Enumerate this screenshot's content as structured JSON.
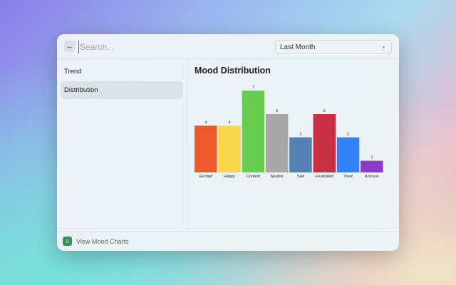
{
  "header": {
    "search_placeholder": "Search...",
    "period": "Last Month"
  },
  "sidebar": {
    "items": [
      {
        "label": "Trend"
      },
      {
        "label": "Distribution"
      }
    ]
  },
  "main": {
    "title": "Mood Distribution"
  },
  "footer": {
    "label": "View Mood Charts"
  },
  "chart_data": {
    "type": "bar",
    "title": "Mood Distribution",
    "categories": [
      "Excited",
      "Happy",
      "Content",
      "Neutral",
      "Sad",
      "Frustrated",
      "Tired",
      "Anxious"
    ],
    "values": [
      4,
      4,
      7,
      5,
      3,
      5,
      3,
      1
    ],
    "colors": [
      "#ee5a2b",
      "#f8d74a",
      "#67cc4f",
      "#a7a7a7",
      "#5380b0",
      "#c93042",
      "#3380f7",
      "#8b3acb"
    ],
    "ylim": [
      0,
      7
    ],
    "grid": false
  }
}
